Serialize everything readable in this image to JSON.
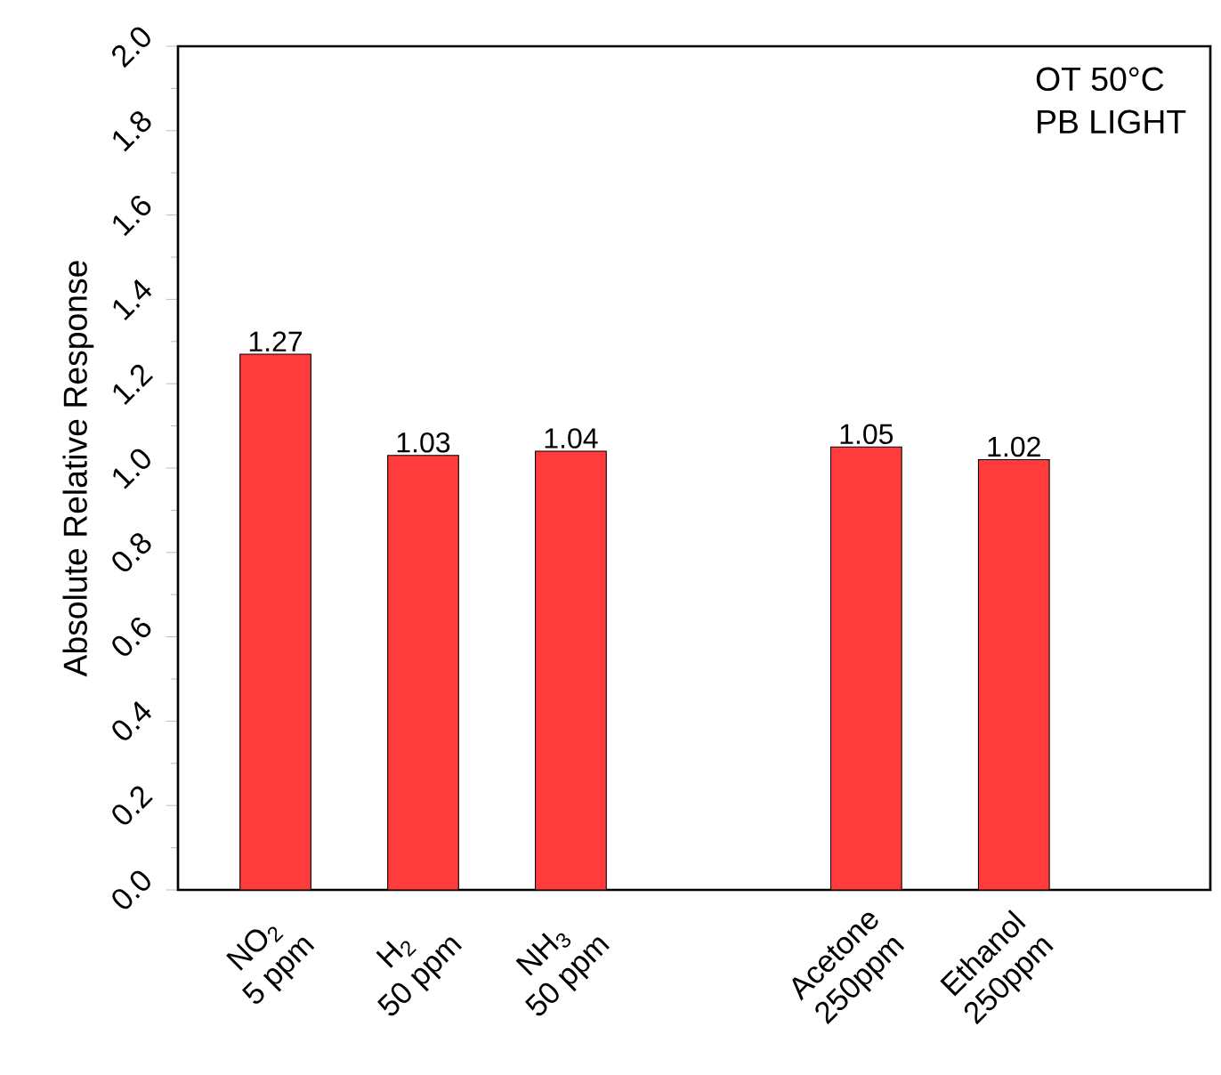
{
  "chart_data": {
    "type": "bar",
    "ylabel": "Absolute Relative Response",
    "categories": [
      "NO$_{2}$\n5 ppm",
      "H$_{2}$\n50 ppm",
      "NH$_{3}$\n50 ppm",
      null,
      "Acetone\n250ppm",
      "Ethanol\n250ppm"
    ],
    "values": [
      1.27,
      1.03,
      1.04,
      null,
      1.05,
      1.02
    ],
    "color": "#ff3b3b",
    "data_labels": true,
    "grid": false,
    "ylim": [
      0,
      2.0
    ],
    "yticks": [
      {
        "value": 0,
        "label": "0.0"
      },
      {
        "value": 0.2,
        "label": "0.2"
      },
      {
        "value": 0.4,
        "label": "0.4"
      },
      {
        "value": 0.6,
        "label": "0.6"
      },
      {
        "value": 0.8,
        "label": "0.8"
      },
      {
        "value": 1.0,
        "label": "1.0"
      },
      {
        "value": 1.2,
        "label": "1.2"
      },
      {
        "value": 1.4,
        "label": "1.4"
      },
      {
        "value": 1.6,
        "label": "1.6"
      },
      {
        "value": 1.8,
        "label": "1.8"
      },
      {
        "value": 2.0,
        "label": "2.0"
      }
    ],
    "annotations": [
      "OT 50°C",
      "PB LIGHT"
    ]
  }
}
